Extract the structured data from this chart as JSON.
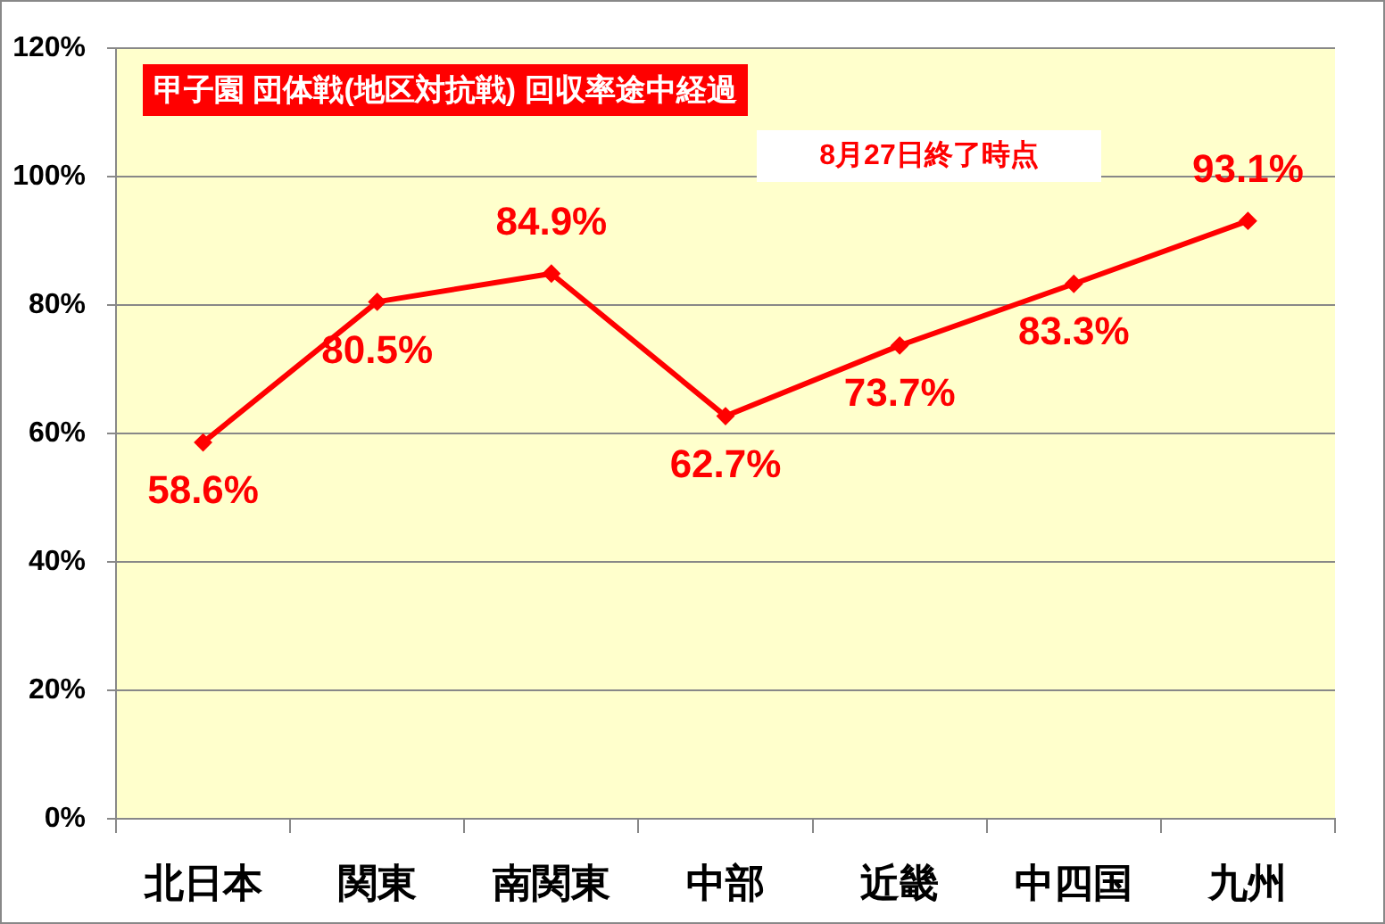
{
  "chart_data": {
    "type": "line",
    "title": "甲子園 団体戦(地区対抗戦) 回収率途中経過",
    "subtitle": "8月27日終了時点",
    "categories": [
      "北日本",
      "関東",
      "南関東",
      "中部",
      "近畿",
      "中四国",
      "九州"
    ],
    "values": [
      58.6,
      80.5,
      84.9,
      62.7,
      73.7,
      83.3,
      93.1
    ],
    "color": "#ff0000",
    "value_labels": [
      "58.6%",
      "80.5%",
      "84.9%",
      "62.7%",
      "73.7%",
      "83.3%",
      "93.1%"
    ],
    "ylim": [
      0,
      120
    ],
    "yticks": [
      {
        "value": 0,
        "label": "0%"
      },
      {
        "value": 20,
        "label": "20%"
      },
      {
        "value": 40,
        "label": "40%"
      },
      {
        "value": 60,
        "label": "60%"
      },
      {
        "value": 80,
        "label": "80%"
      },
      {
        "value": 100,
        "label": "100%"
      },
      {
        "value": 120,
        "label": "120%"
      }
    ],
    "grid": "y",
    "marker": "diamond"
  }
}
